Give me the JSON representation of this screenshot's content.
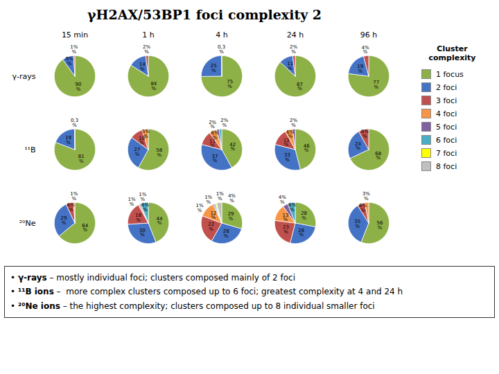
{
  "chart_data": {
    "type": "pie",
    "title": "γH2AX/53BP1 foci complexity 2",
    "columns": [
      "15 min",
      "1 h",
      "4 h",
      "24 h",
      "96 h"
    ],
    "rows": [
      "γ-rays",
      "¹¹B",
      "²⁰Ne"
    ],
    "categories": [
      "1 focus",
      "2 foci",
      "3 foci",
      "4 foci",
      "5 foci",
      "6 foci",
      "7 foci",
      "8 foci"
    ],
    "colors": [
      "#8db047",
      "#4472c4",
      "#c0504d",
      "#f79646",
      "#7f60a0",
      "#4bacc6",
      "#ffff00",
      "#c0c0c0"
    ],
    "legend": "right",
    "legend_title": "Cluster\ncomplexity",
    "data_labels": true,
    "pies": [
      [
        {
          "values": [
            90,
            9,
            1,
            0,
            0,
            0,
            0,
            0
          ],
          "value_labels": [
            "90\n%",
            "9%\n%",
            "1%\n%",
            null,
            null,
            null,
            null,
            null
          ]
        },
        {
          "values": [
            84,
            14,
            2,
            0,
            0,
            0,
            0,
            0
          ],
          "value_labels": [
            "84\n%",
            "14\n%",
            "2%\n%",
            null,
            null,
            null,
            null,
            null
          ]
        },
        {
          "values": [
            75,
            25,
            0.3,
            0,
            0,
            0,
            0,
            0
          ],
          "value_labels": [
            "75\n%",
            "25\n%",
            "0,3\n%",
            null,
            null,
            null,
            null,
            null
          ]
        },
        {
          "values": [
            87,
            11,
            2,
            0,
            0,
            0,
            0,
            0
          ],
          "value_labels": [
            "87\n%",
            "11\n%",
            "2%\n%",
            null,
            null,
            null,
            null,
            null
          ]
        },
        {
          "values": [
            77,
            19,
            4,
            0,
            0,
            0,
            0,
            0
          ],
          "value_labels": [
            "77\n%",
            "19\n%",
            "4%\n%",
            null,
            null,
            null,
            null,
            null
          ]
        }
      ],
      [
        {
          "values": [
            81,
            19,
            0,
            0.3,
            0,
            0,
            0,
            0
          ],
          "value_labels": [
            "81\n%",
            "19\n%",
            null,
            "0,3\n%",
            null,
            null,
            null,
            null
          ]
        },
        {
          "values": [
            58,
            27,
            10,
            5,
            0,
            0,
            0,
            0
          ],
          "value_labels": [
            "58\n%",
            "27\n%",
            "10\n%",
            "5%\n%",
            null,
            null,
            null,
            null
          ]
        },
        {
          "values": [
            42,
            37,
            11,
            6,
            2,
            2,
            0,
            0
          ],
          "value_labels": [
            "42\n%",
            "37\n%",
            "11\n%",
            "6%\n%",
            "2%\n%",
            "2%\n%",
            null,
            null
          ]
        },
        {
          "values": [
            46,
            33,
            13,
            6,
            2,
            0,
            0,
            0
          ],
          "value_labels": [
            "46\n%",
            "33\n%",
            "13\n%",
            "6%\n%",
            "2%\n%",
            null,
            null,
            null
          ]
        },
        {
          "values": [
            68,
            24,
            8,
            0,
            0,
            0,
            0,
            0
          ],
          "value_labels": [
            "68\n%",
            "24\n%",
            "8%\n%",
            null,
            null,
            null,
            null,
            null
          ]
        }
      ],
      [
        {
          "values": [
            64,
            29,
            6,
            1,
            0,
            0,
            0,
            0
          ],
          "value_labels": [
            "64\n%",
            "29\n%",
            "6%\n%",
            "1%\n%",
            null,
            null,
            null,
            null
          ]
        },
        {
          "values": [
            44,
            30,
            18,
            1,
            1,
            6,
            0,
            0
          ],
          "value_labels": [
            "44\n%",
            "30\n%",
            "18\n%",
            "1%\n%",
            "1%\n%",
            "6%\n%",
            null,
            null
          ]
        },
        {
          "values": [
            29,
            28,
            22,
            12,
            1,
            1,
            1,
            4
          ],
          "value_labels": [
            "29\n%",
            "28\n%",
            "22\n%",
            "12\n%",
            "1%\n%",
            "1%\n%",
            "1%\n%",
            "4%\n%"
          ]
        },
        {
          "values": [
            28,
            26,
            23,
            13,
            4,
            6,
            0,
            0
          ],
          "value_labels": [
            "28\n%",
            "26\n%",
            "23\n%",
            "13\n%",
            "4%\n%",
            "6%\n%",
            null,
            null
          ]
        },
        {
          "values": [
            56,
            35,
            6,
            3,
            0,
            0,
            0,
            0
          ],
          "value_labels": [
            "56\n%",
            "35\n%",
            "6%\n%",
            "3%\n%",
            null,
            null,
            null,
            null
          ]
        }
      ]
    ],
    "annotations": [
      [
        "• ",
        "γ-rays",
        " – mostly individual foci; clusters composed mainly of 2 foci"
      ],
      [
        "• ",
        "¹¹B ions",
        " –  more complex clusters composed up to 6 foci; greatest complexity at 4 and 24 h"
      ],
      [
        "• ",
        "²⁰Ne ions",
        " – the highest complexity; clusters composed up to 8 individual smaller foci"
      ]
    ]
  }
}
